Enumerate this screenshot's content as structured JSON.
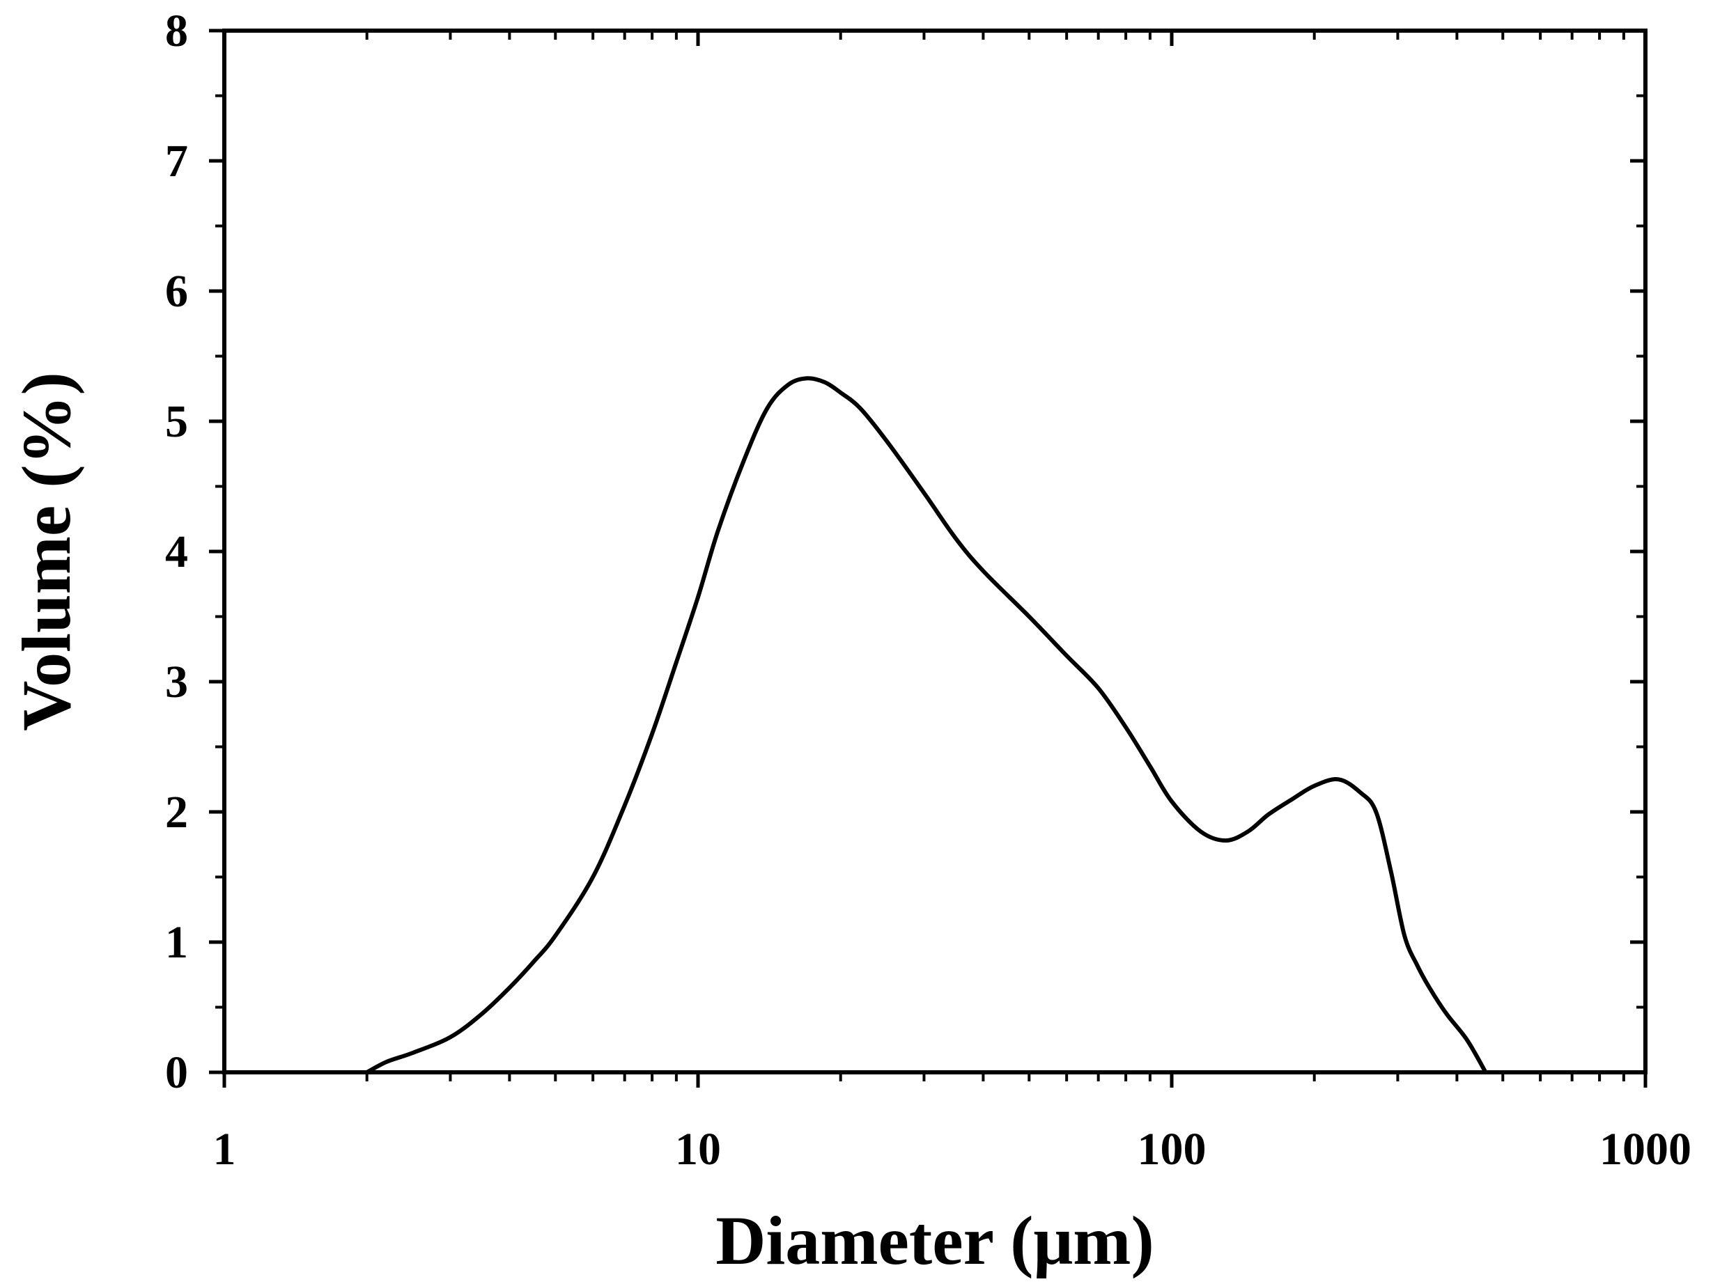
{
  "chart_data": {
    "type": "line",
    "title": "",
    "xlabel": "Diameter (μm)",
    "ylabel": "Volume (%)",
    "xscale": "log",
    "xlim": [
      1,
      1000
    ],
    "ylim": [
      0,
      8
    ],
    "x_ticks": [
      {
        "value": 1,
        "label": "1"
      },
      {
        "value": 10,
        "label": "10"
      },
      {
        "value": 100,
        "label": "100"
      },
      {
        "value": 1000,
        "label": "1000"
      }
    ],
    "y_ticks": [
      {
        "value": 0,
        "label": "0"
      },
      {
        "value": 1,
        "label": "1"
      },
      {
        "value": 2,
        "label": "2"
      },
      {
        "value": 3,
        "label": "3"
      },
      {
        "value": 4,
        "label": "4"
      },
      {
        "value": 5,
        "label": "5"
      },
      {
        "value": 6,
        "label": "6"
      },
      {
        "value": 7,
        "label": "7"
      },
      {
        "value": 8,
        "label": "8"
      }
    ],
    "grid": false,
    "legend": "none",
    "series": [
      {
        "color": "#000000",
        "x": [
          2.0,
          2.2,
          2.5,
          3.0,
          3.5,
          4.0,
          4.5,
          5.0,
          6.0,
          7.0,
          8.0,
          9.0,
          10.0,
          11.0,
          12.5,
          14.0,
          15.5,
          17.0,
          18.5,
          20.0,
          22.0,
          25.0,
          30.0,
          35.0,
          40.0,
          50.0,
          60.0,
          70.0,
          80.0,
          90.0,
          100.0,
          115.0,
          130.0,
          145.0,
          160.0,
          180.0,
          200.0,
          225.0,
          250.0,
          270.0,
          290.0,
          310.0,
          330.0,
          350.0,
          380.0,
          420.0,
          460.0
        ],
        "y": [
          0.0,
          0.08,
          0.15,
          0.27,
          0.45,
          0.65,
          0.85,
          1.05,
          1.5,
          2.05,
          2.6,
          3.15,
          3.65,
          4.15,
          4.7,
          5.1,
          5.28,
          5.33,
          5.3,
          5.22,
          5.1,
          4.85,
          4.45,
          4.1,
          3.85,
          3.5,
          3.2,
          2.95,
          2.65,
          2.35,
          2.08,
          1.85,
          1.78,
          1.85,
          1.98,
          2.1,
          2.2,
          2.25,
          2.15,
          2.0,
          1.55,
          1.05,
          0.82,
          0.65,
          0.45,
          0.25,
          0.0
        ]
      }
    ]
  }
}
